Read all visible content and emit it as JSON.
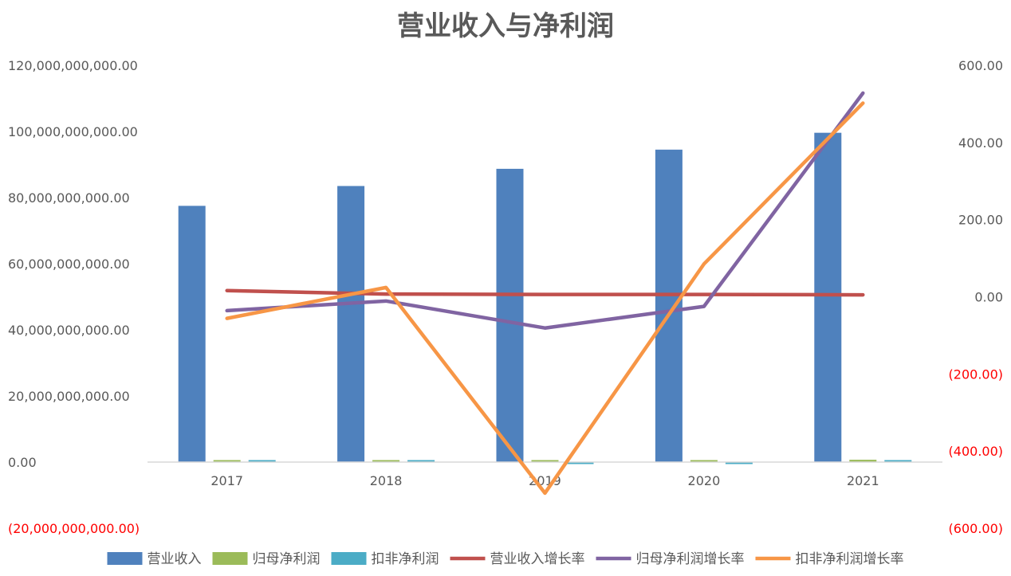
{
  "chart_data": {
    "type": "bar",
    "title": "营业收入与净利润",
    "categories": [
      "2017",
      "2018",
      "2019",
      "2020",
      "2021"
    ],
    "ylim": [
      -20000000000,
      120000000000
    ],
    "y2lim": [
      -600,
      600
    ],
    "yticks": [
      {
        "value": 120000000000,
        "label": "120,000,000,000.00"
      },
      {
        "value": 100000000000,
        "label": "100,000,000,000.00"
      },
      {
        "value": 80000000000,
        "label": "80,000,000,000.00"
      },
      {
        "value": 60000000000,
        "label": "60,000,000,000.00"
      },
      {
        "value": 40000000000,
        "label": "40,000,000,000.00"
      },
      {
        "value": 20000000000,
        "label": "20,000,000,000.00"
      },
      {
        "value": 0,
        "label": "0.00"
      },
      {
        "value": -20000000000,
        "label": "(20,000,000,000.00)"
      }
    ],
    "y2ticks": [
      {
        "value": 600,
        "label": "600.00"
      },
      {
        "value": 400,
        "label": "400.00"
      },
      {
        "value": 200,
        "label": "200.00"
      },
      {
        "value": 0,
        "label": "0.00"
      },
      {
        "value": -200,
        "label": "(200.00)"
      },
      {
        "value": -400,
        "label": "(400.00)"
      },
      {
        "value": -600,
        "label": "(600.00)"
      }
    ],
    "bar_series": [
      {
        "name": "营业收入",
        "color": "#4f81bd",
        "values": [
          77500000000,
          83500000000,
          88700000000,
          94500000000,
          99600000000
        ]
      },
      {
        "name": "归母净利润",
        "color": "#9bbb59",
        "values": [
          500000000,
          600000000,
          200000000,
          300000000,
          700000000
        ]
      },
      {
        "name": "扣非净利润",
        "color": "#4bacc6",
        "values": [
          400000000,
          400000000,
          -300000000,
          -300000000,
          500000000
        ]
      }
    ],
    "line_series": [
      {
        "name": "营业收入增长率",
        "color": "#c0504d",
        "values": [
          16,
          7,
          6,
          6,
          5
        ]
      },
      {
        "name": "归母净利润增长率",
        "color": "#8064a2",
        "values": [
          -36,
          -11,
          -81,
          -25,
          528
        ]
      },
      {
        "name": "扣非净利润增长率",
        "color": "#f79646",
        "values": [
          -56,
          24,
          -509,
          85,
          502
        ]
      }
    ],
    "legend_position": "bottom",
    "grid": false
  }
}
